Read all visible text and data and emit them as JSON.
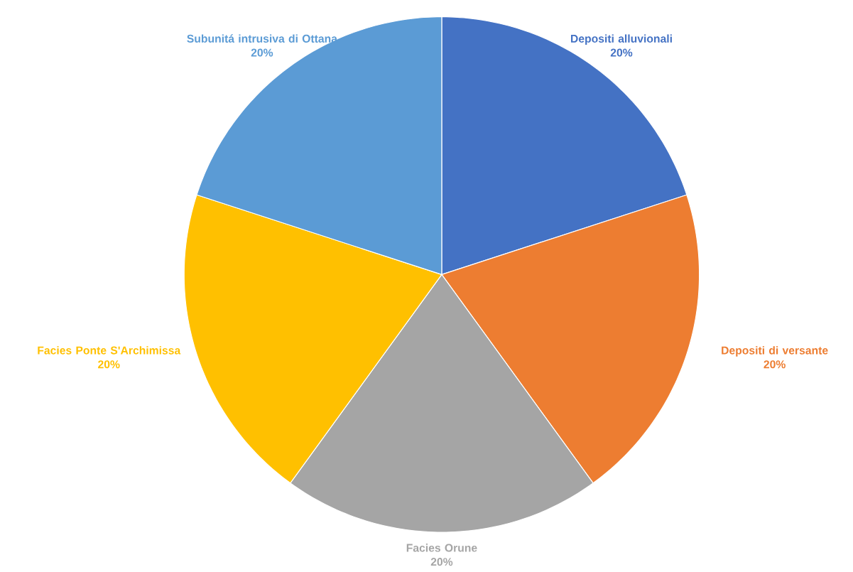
{
  "chart_data": {
    "type": "pie",
    "categories": [
      "Depositi alluvionali",
      "Depositi di versante",
      "Facies Orune",
      "Facies Ponte S'Archimissa",
      "Subunitá intrusiva di Ottana"
    ],
    "values": [
      20,
      20,
      20,
      20,
      20
    ],
    "colors": [
      "#4472c4",
      "#ed7d31",
      "#a5a5a5",
      "#ffc000",
      "#5b9bd5"
    ],
    "value_labels": [
      "20%",
      "20%",
      "20%",
      "20%",
      "20%"
    ]
  }
}
